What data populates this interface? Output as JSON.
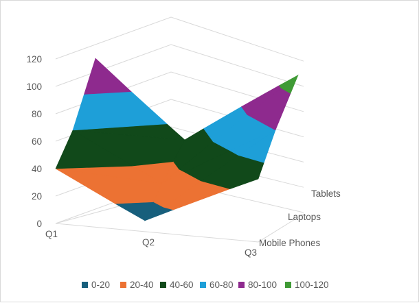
{
  "chart_data": {
    "type": "surface",
    "title": "",
    "categories": [
      "Q1",
      "Q2",
      "Q3"
    ],
    "series": [
      {
        "name": "Mobile Phones",
        "values": [
          40,
          10,
          50
        ]
      },
      {
        "name": "Laptops",
        "values": [
          60,
          30,
          80
        ]
      },
      {
        "name": "Tablets",
        "values": [
          100,
          50,
          110
        ]
      }
    ],
    "zlim": [
      0,
      120
    ],
    "z_ticks": [
      "0",
      "20",
      "40",
      "60",
      "80",
      "100",
      "120"
    ],
    "x_tick_labels": [
      "Q1",
      "Q2",
      "Q3"
    ],
    "depth_tick_labels": [
      "Mobile Phones",
      "Laptops",
      "Tablets"
    ],
    "bands": [
      {
        "label": "0-20",
        "color": "#175f7c"
      },
      {
        "label": "20-40",
        "color": "#ec7233"
      },
      {
        "label": "40-60",
        "color": "#11491a"
      },
      {
        "label": "60-80",
        "color": "#1e9fd8"
      },
      {
        "label": "80-100",
        "color": "#8e2a8e"
      },
      {
        "label": "100-120",
        "color": "#3f9a35"
      }
    ],
    "grid": true,
    "legend_position": "bottom"
  }
}
